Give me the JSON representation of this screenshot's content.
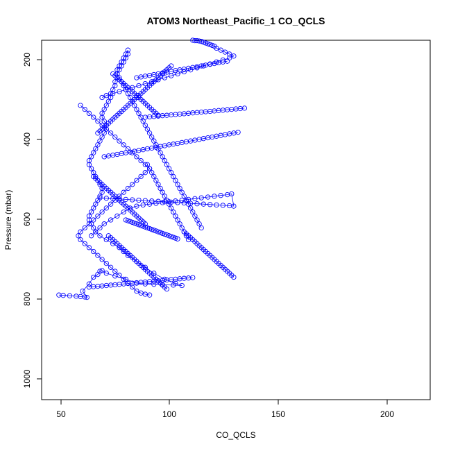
{
  "chart_data": {
    "type": "scatter",
    "title": "ATOM3 Northeast_Pacific_1 CO_QCLS",
    "xlabel": "CO_QCLS",
    "ylabel": "Pressure (mbar)",
    "xlim": [
      40,
      220
    ],
    "ylim": [
      1065,
      155
    ],
    "x_ticks": [
      50,
      100,
      150,
      200
    ],
    "y_ticks": [
      200,
      400,
      600,
      800,
      1000
    ],
    "y_reversed": true,
    "grid": false,
    "legend": "none",
    "colors": {
      "series": "#0000ff",
      "axes": "#000000",
      "background": "#ffffff"
    },
    "series": [
      {
        "type": "line+scatter",
        "x": [
          48,
          50,
          53,
          56,
          58,
          60,
          61,
          59,
          62,
          64,
          66,
          67,
          68,
          70,
          74,
          79,
          84,
          88,
          92,
          96,
          101,
          105,
          102,
          97,
          92,
          88,
          84,
          80,
          78,
          76,
          73,
          70,
          67,
          65,
          64,
          63,
          62,
          62,
          63,
          64,
          65,
          66,
          67,
          68,
          68,
          67,
          66,
          65,
          64,
          63,
          62,
          62,
          63,
          64,
          65,
          66,
          67,
          68,
          69,
          70,
          70,
          69,
          68,
          68,
          69,
          70,
          71,
          72,
          72,
          73,
          74,
          74,
          75,
          75,
          76,
          77,
          78,
          79,
          80,
          80,
          79,
          78,
          77,
          76,
          75,
          75,
          76,
          77,
          78,
          79,
          80,
          81,
          82,
          83,
          84,
          85,
          86,
          87,
          88,
          89,
          90,
          91,
          92,
          93,
          94,
          95,
          96,
          97,
          98,
          99,
          100,
          101,
          102,
          103,
          104,
          105,
          106,
          107,
          108,
          109,
          110,
          111,
          112,
          113,
          114
        ],
        "y": [
          800,
          801,
          802,
          803,
          804,
          805,
          806,
          790,
          772,
          755,
          748,
          740,
          738,
          745,
          752,
          760,
          770,
          772,
          773,
          774,
          775,
          776,
          770,
          760,
          745,
          730,
          715,
          700,
          690,
          680,
          670,
          660,
          650,
          640,
          630,
          620,
          610,
          600,
          590,
          580,
          570,
          560,
          550,
          540,
          530,
          520,
          510,
          500,
          490,
          480,
          470,
          460,
          450,
          440,
          430,
          420,
          410,
          400,
          390,
          380,
          370,
          360,
          350,
          340,
          330,
          320,
          310,
          300,
          290,
          280,
          270,
          260,
          250,
          240,
          230,
          220,
          210,
          200,
          190,
          180,
          190,
          200,
          210,
          220,
          230,
          240,
          250,
          260,
          270,
          280,
          290,
          300,
          310,
          320,
          330,
          340,
          350,
          360,
          370,
          380,
          390,
          400,
          410,
          420,
          430,
          440,
          450,
          460,
          470,
          480,
          490,
          500,
          510,
          520,
          530,
          540,
          550,
          560,
          570,
          580,
          590,
          600,
          610,
          620,
          630
        ]
      },
      {
        "type": "line+scatter",
        "x": [
          58,
          60,
          62,
          64,
          66,
          68,
          70,
          72,
          74,
          76,
          78,
          80,
          82,
          84,
          86,
          88,
          90,
          88,
          86,
          84,
          82,
          80,
          78,
          76,
          74,
          72,
          70,
          68,
          66,
          64,
          62,
          60,
          58,
          57,
          58,
          60,
          62,
          64,
          66,
          68,
          70,
          72,
          74,
          76,
          78,
          80,
          82,
          84,
          86,
          88,
          90
        ],
        "y": [
          320,
          330,
          340,
          350,
          360,
          370,
          380,
          390,
          400,
          410,
          420,
          430,
          440,
          450,
          460,
          470,
          480,
          490,
          500,
          510,
          520,
          530,
          540,
          550,
          560,
          570,
          580,
          590,
          600,
          610,
          620,
          630,
          640,
          650,
          660,
          670,
          680,
          690,
          700,
          710,
          720,
          730,
          740,
          750,
          760,
          770,
          780,
          790,
          795,
          798,
          800
        ]
      },
      {
        "type": "line+scatter",
        "x": [
          63,
          65,
          67,
          69,
          72,
          75,
          78,
          81,
          84,
          87,
          90,
          93,
          96,
          99,
          102,
          105,
          108,
          111,
          114,
          117,
          120,
          123,
          126,
          128,
          129,
          127,
          124,
          121,
          118,
          115,
          112,
          109,
          106,
          103,
          100,
          97,
          94,
          91,
          88,
          85,
          82,
          79,
          76,
          73,
          70,
          67
        ],
        "y": [
          650,
          640,
          630,
          620,
          610,
          600,
          590,
          580,
          575,
          572,
          570,
          568,
          566,
          564,
          562,
          560,
          558,
          556,
          554,
          552,
          550,
          548,
          546,
          544,
          575,
          574,
          573,
          572,
          571,
          570,
          569,
          568,
          567,
          566,
          565,
          564,
          563,
          562,
          561,
          560,
          559,
          558,
          557,
          556,
          555,
          554
        ]
      },
      {
        "type": "line+scatter",
        "x": [
          68,
          70,
          73,
          76,
          79,
          82,
          85,
          88,
          91,
          94,
          97,
          100,
          103,
          106,
          109,
          112,
          115,
          118,
          121,
          124,
          127,
          129,
          127,
          125,
          123,
          121,
          120,
          119,
          118,
          117,
          116,
          115,
          114,
          113,
          112,
          111,
          110
        ],
        "y": [
          300,
          295,
          290,
          285,
          280,
          275,
          270,
          265,
          260,
          255,
          250,
          245,
          240,
          235,
          230,
          225,
          220,
          215,
          210,
          205,
          200,
          195,
          190,
          185,
          180,
          175,
          170,
          168,
          166,
          164,
          162,
          160,
          158,
          157,
          156,
          156,
          155
        ]
      },
      {
        "type": "line+scatter",
        "x": [
          69,
          71,
          73,
          75,
          77,
          79,
          81,
          83,
          85,
          87,
          89,
          91,
          93,
          95,
          97,
          99,
          101,
          103,
          105,
          107,
          109,
          111,
          113,
          115,
          117,
          119,
          121,
          123,
          125,
          127,
          129,
          131
        ],
        "y": [
          450,
          448,
          446,
          444,
          442,
          440,
          438,
          436,
          434,
          432,
          430,
          428,
          426,
          424,
          422,
          420,
          418,
          416,
          414,
          412,
          410,
          408,
          406,
          404,
          402,
          400,
          398,
          396,
          394,
          392,
          390,
          388
        ]
      },
      {
        "type": "line+scatter",
        "x": [
          62,
          64,
          66,
          68,
          70,
          72,
          74,
          76,
          78,
          80,
          82,
          84,
          86,
          88,
          90,
          92,
          94,
          96,
          98,
          100,
          102,
          104,
          106,
          108,
          110
        ],
        "y": [
          780,
          779,
          778,
          777,
          776,
          775,
          774,
          773,
          772,
          771,
          770,
          769,
          768,
          767,
          766,
          765,
          764,
          763,
          762,
          761,
          760,
          759,
          758,
          757,
          756
        ]
      },
      {
        "type": "line+scatter",
        "x": [
          66,
          67,
          68,
          69,
          70,
          71,
          72,
          73,
          74,
          75,
          76,
          77,
          78,
          79,
          80,
          81,
          82,
          83,
          84,
          85,
          86,
          87,
          88,
          89,
          90,
          91,
          92,
          93,
          94,
          95,
          96,
          97,
          98,
          99,
          100
        ],
        "y": [
          390,
          385,
          380,
          375,
          370,
          365,
          360,
          355,
          350,
          345,
          340,
          335,
          330,
          325,
          320,
          315,
          310,
          305,
          300,
          295,
          290,
          285,
          280,
          275,
          270,
          265,
          260,
          255,
          250,
          245,
          240,
          235,
          230,
          225,
          220
        ]
      },
      {
        "type": "line+scatter",
        "x": [
          64,
          65,
          66,
          67,
          68,
          69,
          70,
          71,
          72,
          73,
          74,
          75,
          76,
          77,
          78,
          79,
          80,
          81,
          82,
          83,
          84,
          85,
          86,
          87,
          88
        ],
        "y": [
          500,
          505,
          510,
          515,
          520,
          525,
          530,
          535,
          540,
          545,
          550,
          555,
          560,
          565,
          570,
          575,
          580,
          585,
          590,
          595,
          600,
          605,
          610,
          615,
          620
        ]
      },
      {
        "type": "line+scatter",
        "x": [
          71,
          72,
          73,
          74,
          75,
          76,
          77,
          78,
          79,
          80,
          81,
          82,
          83,
          84,
          85,
          86,
          87,
          88,
          89,
          90,
          91,
          92,
          93,
          94,
          95,
          96,
          97,
          98
        ],
        "y": [
          650,
          655,
          660,
          665,
          670,
          675,
          680,
          685,
          690,
          695,
          700,
          705,
          710,
          715,
          720,
          725,
          730,
          735,
          740,
          745,
          750,
          755,
          760,
          765,
          770,
          775,
          780,
          785
        ]
      },
      {
        "type": "line+scatter",
        "x": [
          79,
          80,
          81,
          82,
          83,
          84,
          85,
          86,
          87,
          88,
          89,
          90,
          91,
          92,
          93,
          94,
          95,
          96,
          97,
          98,
          99,
          100,
          101,
          102,
          103
        ],
        "y": [
          610,
          612,
          614,
          616,
          618,
          620,
          622,
          624,
          626,
          628,
          630,
          632,
          634,
          636,
          638,
          640,
          642,
          644,
          646,
          648,
          650,
          652,
          654,
          656,
          658
        ]
      },
      {
        "type": "line+scatter",
        "x": [
          73,
          74,
          75,
          76,
          77,
          78,
          79,
          80,
          81,
          82,
          83,
          84,
          85,
          86,
          87,
          88,
          89,
          90,
          91,
          92,
          93,
          94
        ],
        "y": [
          240,
          245,
          250,
          255,
          260,
          265,
          270,
          275,
          280,
          285,
          290,
          295,
          300,
          305,
          310,
          315,
          320,
          325,
          330,
          335,
          340,
          345
        ]
      },
      {
        "type": "line+scatter",
        "x": [
          84,
          86,
          88,
          90,
          92,
          94,
          96,
          98,
          100,
          102,
          104,
          106,
          108,
          110,
          112,
          114,
          116,
          118,
          120,
          122,
          124,
          126
        ],
        "y": [
          250,
          248,
          246,
          244,
          242,
          240,
          238,
          236,
          234,
          232,
          230,
          228,
          226,
          224,
          222,
          220,
          218,
          216,
          214,
          212,
          210,
          208
        ]
      },
      {
        "type": "line+scatter",
        "x": [
          89,
          90,
          91,
          92,
          93,
          94,
          95,
          96,
          97,
          98,
          99,
          100,
          101,
          102,
          103,
          104,
          105,
          106,
          107,
          108
        ],
        "y": [
          470,
          480,
          490,
          500,
          510,
          520,
          530,
          540,
          550,
          560,
          570,
          580,
          590,
          600,
          610,
          620,
          630,
          640,
          650,
          660
        ]
      },
      {
        "type": "line+scatter",
        "x": [
          88,
          90,
          92,
          94,
          96,
          98,
          100,
          102,
          104,
          106,
          108,
          110,
          112,
          114,
          116,
          118,
          120,
          122,
          124,
          126,
          128,
          130,
          132,
          134
        ],
        "y": [
          350,
          349,
          348,
          347,
          346,
          345,
          344,
          343,
          342,
          341,
          340,
          339,
          338,
          337,
          336,
          335,
          334,
          333,
          332,
          331,
          330,
          329,
          328,
          327
        ]
      },
      {
        "type": "line+scatter",
        "x": [
          106,
          107,
          108,
          109,
          110,
          111,
          112,
          113,
          114,
          115,
          116,
          117,
          118,
          119,
          120,
          121,
          122,
          123,
          124,
          125,
          126,
          127,
          128,
          129
        ],
        "y": [
          640,
          645,
          650,
          655,
          660,
          665,
          670,
          675,
          680,
          685,
          690,
          695,
          700,
          705,
          710,
          715,
          720,
          725,
          730,
          735,
          740,
          745,
          750,
          755
        ]
      }
    ]
  }
}
